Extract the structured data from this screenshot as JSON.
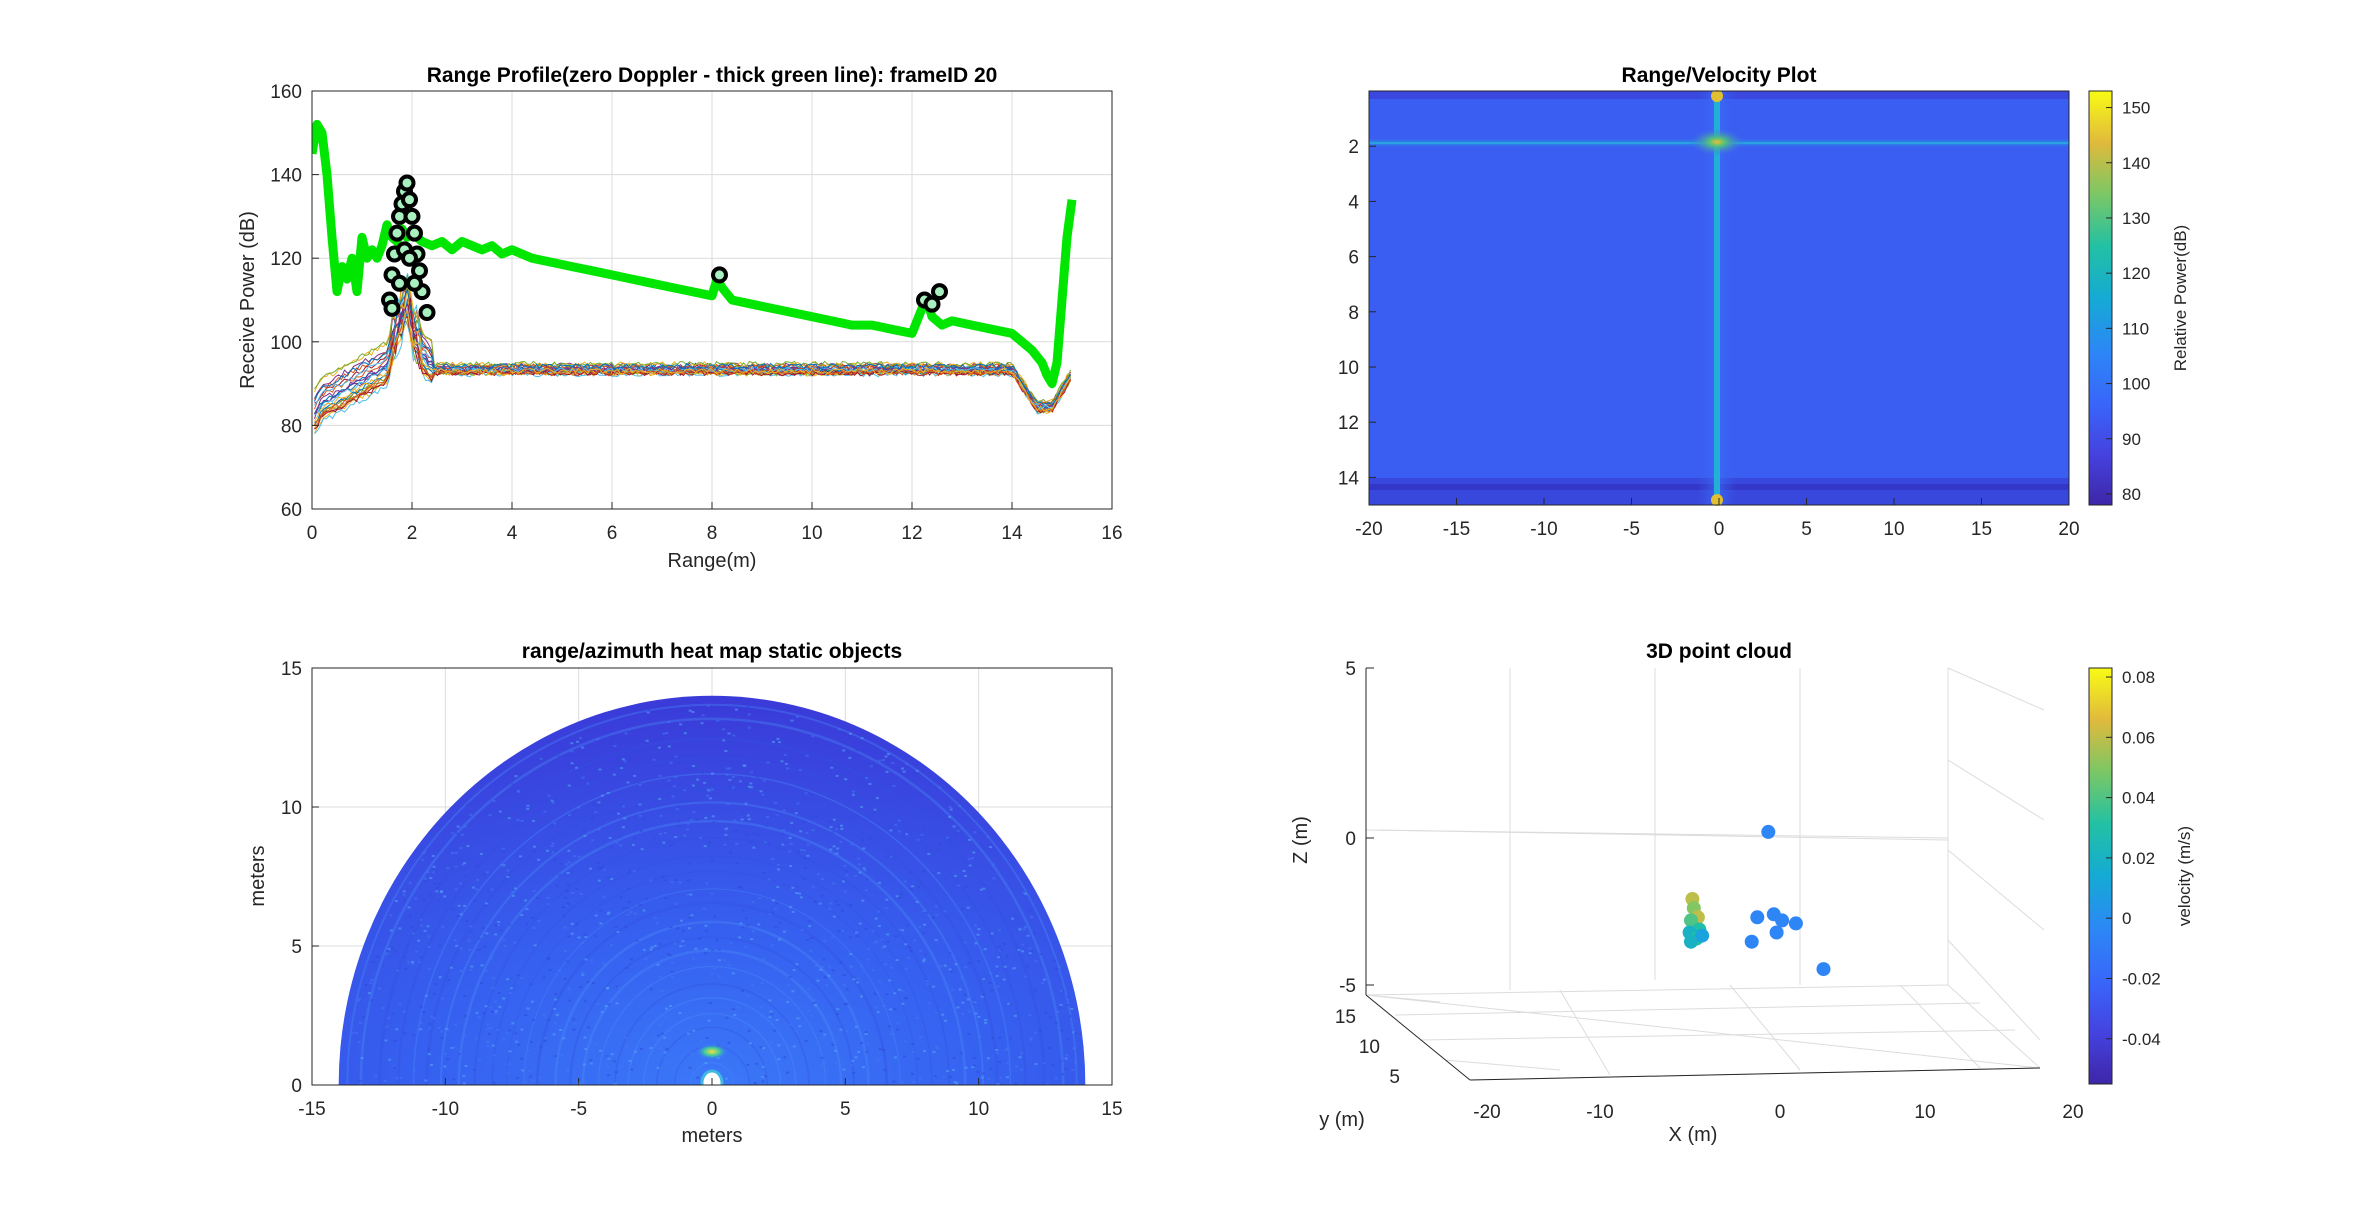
{
  "chart_data": [
    {
      "type": "line",
      "title": "Range Profile(zero Doppler - thick green line): frameID 20",
      "xlabel": "Range(m)",
      "ylabel": "Receive Power (dB)",
      "xlim": [
        0,
        16
      ],
      "ylim": [
        60,
        160
      ],
      "xticks": [
        "0",
        "2",
        "4",
        "6",
        "8",
        "10",
        "12",
        "14",
        "16"
      ],
      "yticks": [
        "60",
        "80",
        "100",
        "120",
        "140",
        "160"
      ],
      "grid": true,
      "series": [
        {
          "color": "#00e600",
          "x": [
            0,
            0.1,
            0.2,
            0.3,
            0.4,
            0.5,
            0.6,
            0.7,
            0.8,
            0.9,
            1.0,
            1.1,
            1.2,
            1.3,
            1.4,
            1.5,
            1.6,
            1.7,
            1.8,
            1.9,
            2.0,
            2.2,
            2.4,
            2.6,
            2.8,
            3.0,
            3.2,
            3.4,
            3.6,
            3.8,
            4.0,
            4.4,
            4.8,
            5.2,
            5.6,
            6.0,
            6.4,
            6.8,
            7.2,
            7.6,
            8.0,
            8.1,
            8.2,
            8.4,
            8.8,
            9.2,
            9.6,
            10.0,
            10.4,
            10.8,
            11.2,
            11.6,
            12.0,
            12.2,
            12.3,
            12.4,
            12.6,
            12.8,
            13.2,
            13.6,
            14.0,
            14.2,
            14.4,
            14.6,
            14.7,
            14.8,
            14.9,
            15.0,
            15.1,
            15.2
          ],
          "values": [
            145,
            152,
            150,
            140,
            125,
            112,
            118,
            115,
            120,
            112,
            125,
            120,
            122,
            120,
            123,
            128,
            125,
            124,
            127,
            125,
            126,
            124,
            123,
            124,
            122,
            124,
            123,
            122,
            123,
            121,
            122,
            120,
            119,
            118,
            117,
            116,
            115,
            114,
            113,
            112,
            111,
            115,
            113,
            110,
            109,
            108,
            107,
            106,
            105,
            104,
            104,
            103,
            102,
            108,
            110,
            106,
            104,
            105,
            104,
            103,
            102,
            100,
            98,
            95,
            92,
            90,
            95,
            110,
            125,
            134
          ]
        }
      ],
      "markers": {
        "style": "black circle with light-green face",
        "points": [
          [
            1.55,
            110
          ],
          [
            1.6,
            116
          ],
          [
            1.65,
            121
          ],
          [
            1.7,
            126
          ],
          [
            1.75,
            130
          ],
          [
            1.8,
            133
          ],
          [
            1.85,
            136
          ],
          [
            1.9,
            138
          ],
          [
            1.95,
            134
          ],
          [
            2.0,
            130
          ],
          [
            2.05,
            126
          ],
          [
            2.1,
            121
          ],
          [
            2.15,
            117
          ],
          [
            2.2,
            112
          ],
          [
            1.6,
            108
          ],
          [
            1.75,
            114
          ],
          [
            1.85,
            122
          ],
          [
            1.95,
            120
          ],
          [
            2.05,
            114
          ],
          [
            2.3,
            107
          ],
          [
            8.15,
            116
          ],
          [
            12.25,
            110
          ],
          [
            12.4,
            109
          ],
          [
            12.55,
            112
          ]
        ]
      },
      "noise_series_count": 24
    },
    {
      "type": "heatmap",
      "title": "Range/Velocity Plot",
      "xlim": [
        -20,
        20
      ],
      "ylim": [
        0,
        15
      ],
      "xticks": [
        "-20",
        "-15",
        "-10",
        "-5",
        "0",
        "5",
        "10",
        "15",
        "20"
      ],
      "yticks": [
        "2",
        "4",
        "6",
        "8",
        "10",
        "12",
        "14"
      ],
      "colorbar": {
        "label": "Relative Power(dB)",
        "range": [
          78,
          153
        ],
        "ticks": [
          "80",
          "90",
          "100",
          "110",
          "120",
          "130",
          "140",
          "150"
        ]
      }
    },
    {
      "type": "heatmap",
      "title": "range/azimuth heat map static objects",
      "xlabel": "meters",
      "ylabel": "meters",
      "xlim": [
        -15,
        15
      ],
      "ylim": [
        0,
        15
      ],
      "xticks": [
        "-15",
        "-10",
        "-5",
        "0",
        "5",
        "10",
        "15"
      ],
      "yticks": [
        "0",
        "5",
        "10",
        "15"
      ],
      "max_range": 14,
      "grid": true
    },
    {
      "type": "scatter",
      "title": "3D point cloud",
      "xlabel": "X (m)",
      "ylabel": "y (m)",
      "zlabel": "Z (m)",
      "xticks": [
        "-20",
        "-10",
        "0",
        "10",
        "20"
      ],
      "yticks": [
        "5",
        "10",
        "15"
      ],
      "zticks": [
        "-5",
        "0",
        "5"
      ],
      "xlim": [
        -20,
        20
      ],
      "ylim": [
        0,
        15
      ],
      "zlim": [
        -5,
        5
      ],
      "colorbar": {
        "label": "velocity (m/s)",
        "range": [
          -0.055,
          0.083
        ],
        "ticks": [
          "-0.04",
          "-0.02",
          "0",
          "0.02",
          "0.04",
          "0.06",
          "0.08"
        ]
      },
      "points": [
        {
          "x": -2.0,
          "y": 2.2,
          "z": -2.0,
          "v": 0.06
        },
        {
          "x": -1.9,
          "y": 2.2,
          "z": -2.3,
          "v": 0.05
        },
        {
          "x": -1.6,
          "y": 2.2,
          "z": -2.6,
          "v": 0.06
        },
        {
          "x": -2.1,
          "y": 2.2,
          "z": -2.7,
          "v": 0.04
        },
        {
          "x": -1.5,
          "y": 2.2,
          "z": -3.0,
          "v": 0.03
        },
        {
          "x": -2.2,
          "y": 2.2,
          "z": -3.1,
          "v": 0.02
        },
        {
          "x": -1.7,
          "y": 2.2,
          "z": -3.3,
          "v": 0.03
        },
        {
          "x": -2.1,
          "y": 2.2,
          "z": -3.4,
          "v": 0.02
        },
        {
          "x": -1.3,
          "y": 2.2,
          "z": -3.2,
          "v": 0.01
        },
        {
          "x": 3.5,
          "y": 2.2,
          "z": 0.2,
          "v": -0.005
        },
        {
          "x": 2.7,
          "y": 2.2,
          "z": -2.6,
          "v": -0.005
        },
        {
          "x": 3.9,
          "y": 2.2,
          "z": -2.5,
          "v": -0.005
        },
        {
          "x": 4.5,
          "y": 2.2,
          "z": -2.7,
          "v": -0.005
        },
        {
          "x": 5.5,
          "y": 2.2,
          "z": -2.8,
          "v": -0.005
        },
        {
          "x": 4.1,
          "y": 2.2,
          "z": -3.1,
          "v": -0.005
        },
        {
          "x": 2.3,
          "y": 2.2,
          "z": -3.4,
          "v": -0.005
        },
        {
          "x": 7.5,
          "y": 2.2,
          "z": -4.3,
          "v": -0.005
        }
      ]
    }
  ]
}
